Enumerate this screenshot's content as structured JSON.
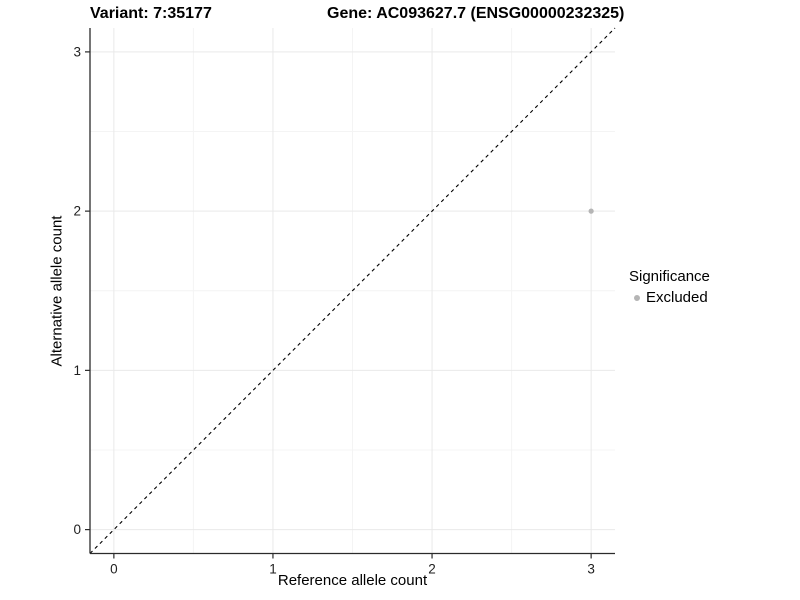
{
  "chart_data": {
    "type": "scatter",
    "title_left": "Variant: 7:35177",
    "title_right": "Gene: AC093627.7 (ENSG00000232325)",
    "xlabel": "Reference allele count",
    "ylabel": "Alternative allele count",
    "xlim": [
      -0.15,
      3.15
    ],
    "ylim": [
      -0.15,
      3.15
    ],
    "xticks": [
      0,
      1,
      2,
      3
    ],
    "yticks": [
      0,
      1,
      2,
      3
    ],
    "minor_xticks": [
      0.5,
      1.5,
      2.5
    ],
    "minor_yticks": [
      0.5,
      1.5,
      2.5
    ],
    "grid": true,
    "identity_line": {
      "style": "dashed",
      "color": "#000000",
      "from": -0.15,
      "to": 3.15
    },
    "series": [
      {
        "name": "Excluded",
        "color": "#b5b5b5",
        "points": [
          {
            "x": 3,
            "y": 2
          }
        ]
      }
    ],
    "legend": {
      "title": "Significance",
      "position": "right",
      "entries": [
        {
          "label": "Excluded",
          "color": "#b5b5b5"
        }
      ]
    }
  },
  "colors": {
    "background": "#ffffff",
    "grid_major": "#e9e9e9",
    "grid_minor": "#f4f4f4",
    "axis_line": "#2b2b2b",
    "tick_mark": "#2b2b2b",
    "tick_label": "#1f1f1f",
    "point": "#b5b5b5",
    "dashed_line": "#000000"
  }
}
